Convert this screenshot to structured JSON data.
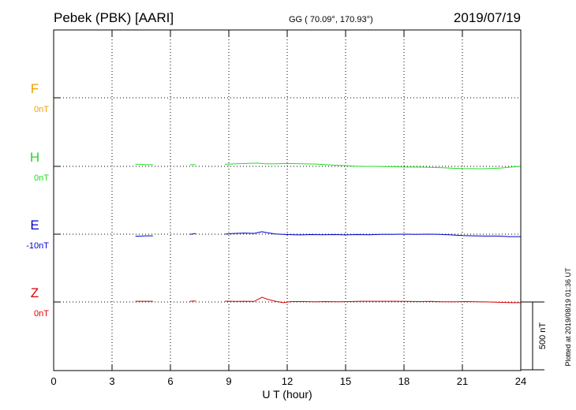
{
  "header": {
    "station": "Pebek (PBK)  [AARI]",
    "coords": "GG ( 70.09°, 170.93°)",
    "date": "2019/07/19"
  },
  "footer": {
    "plotted_note": "Plotted at 2019/08/19 01:36 UT",
    "scale_label": "500 nT"
  },
  "colors": {
    "F": "#f0a000",
    "H": "#22dd22",
    "E": "#0000cc",
    "Z": "#dd0000"
  },
  "chart_data": {
    "type": "line",
    "title": "Pebek (PBK)  [AARI]",
    "xlabel": "U T (hour)",
    "xlim": [
      0,
      24
    ],
    "xticks": [
      0,
      3,
      6,
      9,
      12,
      15,
      18,
      21,
      24
    ],
    "xtick_labels": [
      "0",
      "3",
      "6",
      "9",
      "12",
      "15",
      "18",
      "21",
      "24"
    ],
    "scale_bar_nT": 500,
    "grid": true,
    "series": [
      {
        "name": "F",
        "baseline_label": "0nT",
        "color": "#f0a000",
        "points": []
      },
      {
        "name": "H",
        "baseline_label": "0nT",
        "color": "#22dd22",
        "points": [
          [
            4.2,
            15
          ],
          [
            4.5,
            15
          ],
          [
            4.7,
            12
          ],
          [
            5.1,
            12
          ],
          [
            7.0,
            12
          ],
          [
            7.3,
            12
          ],
          [
            8.8,
            15
          ],
          [
            9.5,
            20
          ],
          [
            10.0,
            22
          ],
          [
            10.5,
            24
          ],
          [
            10.8,
            20
          ],
          [
            11.2,
            18
          ],
          [
            11.6,
            20
          ],
          [
            12.0,
            22
          ],
          [
            12.5,
            20
          ],
          [
            13.0,
            18
          ],
          [
            13.5,
            17
          ],
          [
            14.0,
            12
          ],
          [
            14.5,
            8
          ],
          [
            15.0,
            5
          ],
          [
            15.5,
            2
          ],
          [
            16.0,
            0
          ],
          [
            16.5,
            0
          ],
          [
            17.0,
            -2
          ],
          [
            17.5,
            -3
          ],
          [
            18.0,
            -5
          ],
          [
            18.5,
            -5
          ],
          [
            19.0,
            -6
          ],
          [
            19.5,
            -8
          ],
          [
            20.0,
            -10
          ],
          [
            20.5,
            -14
          ],
          [
            21.0,
            -16
          ],
          [
            21.5,
            -17
          ],
          [
            22.0,
            -18
          ],
          [
            22.5,
            -15
          ],
          [
            23.0,
            -12
          ],
          [
            23.5,
            -5
          ],
          [
            24.0,
            0
          ]
        ]
      },
      {
        "name": "E",
        "baseline_label": "-10nT",
        "color": "#0000cc",
        "points": [
          [
            4.2,
            -15
          ],
          [
            4.5,
            -14
          ],
          [
            4.7,
            -12
          ],
          [
            5.1,
            -12
          ],
          [
            7.0,
            -2
          ],
          [
            7.3,
            5
          ],
          [
            8.8,
            0
          ],
          [
            9.2,
            5
          ],
          [
            9.8,
            8
          ],
          [
            10.3,
            6
          ],
          [
            10.7,
            18
          ],
          [
            11.0,
            10
          ],
          [
            11.4,
            2
          ],
          [
            12.0,
            -3
          ],
          [
            12.6,
            -5
          ],
          [
            13.2,
            -3
          ],
          [
            13.8,
            -4
          ],
          [
            14.4,
            -3
          ],
          [
            15.0,
            -5
          ],
          [
            15.6,
            -3
          ],
          [
            16.2,
            -4
          ],
          [
            16.8,
            -2
          ],
          [
            17.4,
            -2
          ],
          [
            18.0,
            0
          ],
          [
            18.6,
            -1
          ],
          [
            19.2,
            0
          ],
          [
            19.8,
            -2
          ],
          [
            20.4,
            -5
          ],
          [
            21.0,
            -10
          ],
          [
            21.6,
            -12
          ],
          [
            22.2,
            -14
          ],
          [
            22.8,
            -14
          ],
          [
            23.4,
            -18
          ],
          [
            24.0,
            -18
          ]
        ]
      },
      {
        "name": "Z",
        "baseline_label": "0nT",
        "color": "#dd0000",
        "points": [
          [
            4.2,
            5
          ],
          [
            4.5,
            5
          ],
          [
            4.7,
            5
          ],
          [
            5.1,
            5
          ],
          [
            7.0,
            5
          ],
          [
            7.3,
            8
          ],
          [
            8.8,
            6
          ],
          [
            9.3,
            4
          ],
          [
            9.8,
            5
          ],
          [
            10.3,
            4
          ],
          [
            10.7,
            35
          ],
          [
            11.0,
            20
          ],
          [
            11.4,
            5
          ],
          [
            11.8,
            -5
          ],
          [
            12.2,
            3
          ],
          [
            12.8,
            3
          ],
          [
            13.4,
            2
          ],
          [
            14.0,
            3
          ],
          [
            14.6,
            2
          ],
          [
            15.2,
            3
          ],
          [
            15.8,
            5
          ],
          [
            16.4,
            5
          ],
          [
            17.0,
            5
          ],
          [
            17.6,
            5
          ],
          [
            18.2,
            4
          ],
          [
            18.8,
            3
          ],
          [
            19.4,
            4
          ],
          [
            20.0,
            2
          ],
          [
            20.6,
            2
          ],
          [
            21.2,
            3
          ],
          [
            21.8,
            2
          ],
          [
            22.4,
            0
          ],
          [
            23.0,
            -3
          ],
          [
            23.6,
            -5
          ],
          [
            24.0,
            -5
          ]
        ]
      }
    ]
  }
}
